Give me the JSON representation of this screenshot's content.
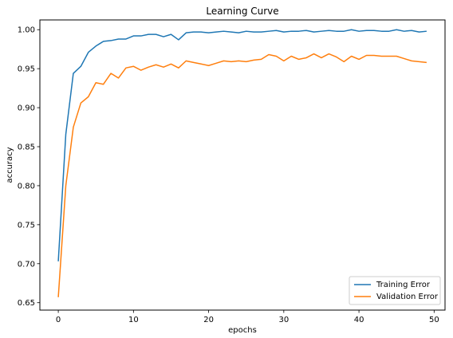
{
  "chart_data": {
    "type": "line",
    "title": "Learning Curve",
    "xlabel": "epochs",
    "ylabel": "accuracy",
    "xlim": [
      -2.45,
      51.45
    ],
    "ylim": [
      0.6405,
      1.0125
    ],
    "xticks": [
      0,
      10,
      20,
      30,
      40,
      50
    ],
    "yticks": [
      0.65,
      0.7,
      0.75,
      0.8,
      0.85,
      0.9,
      0.95,
      1.0
    ],
    "ytick_labels": [
      "0.65",
      "0.70",
      "0.75",
      "0.80",
      "0.85",
      "0.90",
      "0.95",
      "1.00"
    ],
    "grid": false,
    "legend_position": "lower right",
    "x": [
      0,
      1,
      2,
      3,
      4,
      5,
      6,
      7,
      8,
      9,
      10,
      11,
      12,
      13,
      14,
      15,
      16,
      17,
      18,
      19,
      20,
      21,
      22,
      23,
      24,
      25,
      26,
      27,
      28,
      29,
      30,
      31,
      32,
      33,
      34,
      35,
      36,
      37,
      38,
      39,
      40,
      41,
      42,
      43,
      44,
      45,
      46,
      47,
      48,
      49
    ],
    "series": [
      {
        "name": "Training Error",
        "color": "#1f77b4",
        "values": [
          0.703,
          0.866,
          0.944,
          0.953,
          0.971,
          0.979,
          0.985,
          0.986,
          0.988,
          0.988,
          0.992,
          0.992,
          0.994,
          0.994,
          0.991,
          0.994,
          0.987,
          0.996,
          0.997,
          0.997,
          0.996,
          0.997,
          0.998,
          0.997,
          0.996,
          0.998,
          0.997,
          0.997,
          0.998,
          0.999,
          0.997,
          0.998,
          0.998,
          0.999,
          0.997,
          0.998,
          0.999,
          0.998,
          0.998,
          1.0,
          0.998,
          0.999,
          0.999,
          0.998,
          0.998,
          1.0,
          0.998,
          0.999,
          0.997,
          0.998
        ]
      },
      {
        "name": "Validation Error",
        "color": "#ff7f0e",
        "values": [
          0.657,
          0.8,
          0.875,
          0.906,
          0.914,
          0.932,
          0.93,
          0.944,
          0.938,
          0.951,
          0.953,
          0.948,
          0.952,
          0.955,
          0.952,
          0.956,
          0.951,
          0.96,
          0.958,
          0.956,
          0.954,
          0.957,
          0.96,
          0.959,
          0.96,
          0.959,
          0.961,
          0.962,
          0.968,
          0.966,
          0.96,
          0.966,
          0.962,
          0.964,
          0.969,
          0.964,
          0.969,
          0.965,
          0.959,
          0.966,
          0.962,
          0.967,
          0.967,
          0.966,
          0.966,
          0.966,
          0.963,
          0.96,
          0.959,
          0.958
        ]
      }
    ]
  }
}
